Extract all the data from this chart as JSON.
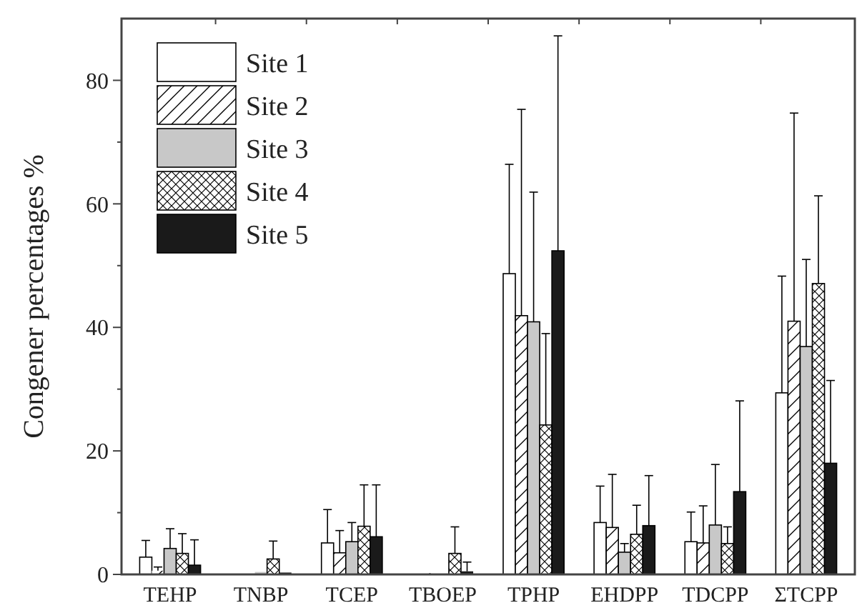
{
  "chart_data": {
    "type": "bar",
    "ylabel": "Congener percentages %",
    "categories": [
      "TEHP",
      "TNBP",
      "TCEP",
      "TBOEP",
      "TPHP",
      "EHDPP",
      "TDCPP",
      "ΣTCPP"
    ],
    "series": [
      {
        "name": "Site 1",
        "color": "#ffffff",
        "values": [
          2.8,
          0.2,
          5.1,
          0,
          48.7,
          8.4,
          5.3,
          29.4
        ],
        "errors": [
          2.7,
          null,
          5.4,
          null,
          17.7,
          5.9,
          4.8,
          18.9
        ]
      },
      {
        "name": "Site 2",
        "color": "#000000",
        "values": [
          0.6,
          0.1,
          3.5,
          0.2,
          41.9,
          7.6,
          5.1,
          41
        ],
        "errors": [
          0.6,
          null,
          3.6,
          null,
          33.4,
          8.6,
          6,
          33.7
        ]
      },
      {
        "name": "Site 3",
        "color": "#c8c8c8",
        "values": [
          4.2,
          0.4,
          5.3,
          0,
          40.9,
          3.6,
          8,
          36.9
        ],
        "errors": [
          3.2,
          null,
          3.1,
          null,
          21,
          1.4,
          9.8,
          14.1
        ]
      },
      {
        "name": "Site 4",
        "color": "#000000",
        "values": [
          3.4,
          2.5,
          7.8,
          3.4,
          24.2,
          6.5,
          5,
          47.1
        ],
        "errors": [
          3.2,
          2.9,
          6.7,
          4.3,
          14.8,
          4.7,
          2.7,
          14.2
        ]
      },
      {
        "name": "Site 5",
        "color": "#1a1a1a",
        "values": [
          1.5,
          0.3,
          6.1,
          0.5,
          52.4,
          7.9,
          13.4,
          18
        ],
        "errors": [
          4.1,
          null,
          8.4,
          1.5,
          34.8,
          8.1,
          14.7,
          13.4
        ]
      }
    ],
    "ylim": [
      0,
      90
    ],
    "yticks": [
      0,
      {
        "value": 10,
        "label": null
      },
      20,
      {
        "value": 30,
        "label": null
      },
      40,
      {
        "value": 50,
        "label": null
      },
      60,
      {
        "value": 70,
        "label": null
      },
      80
    ],
    "grid": false,
    "legend": "top left"
  }
}
